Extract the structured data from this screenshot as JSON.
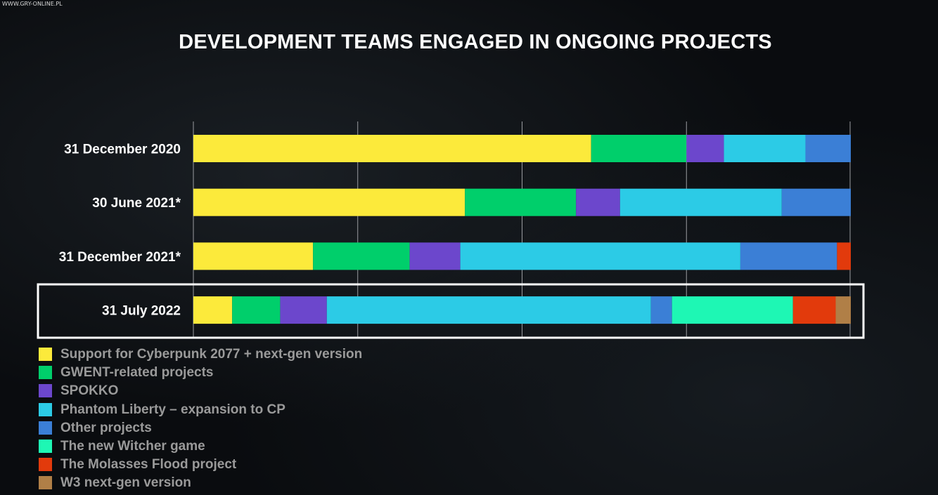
{
  "watermark": "WWW.GRY-ONLINE.PL",
  "chart_data": {
    "type": "bar",
    "orientation": "horizontal",
    "stacked": true,
    "normalized": true,
    "title": "DEVELOPMENT TEAMS ENGAGED IN ONGOING PROJECTS",
    "xlabel": "",
    "ylabel": "",
    "xlim": [
      0,
      100
    ],
    "grid": true,
    "legend_position": "bottom-left",
    "highlighted_category": "31 July 2022",
    "categories": [
      "31 December 2020",
      "30 June 2021*",
      "31 December 2021*",
      "31 July 2022"
    ],
    "series": [
      {
        "name": "Support for Cyberpunk 2077 + next-gen version",
        "color": "#fcea3b",
        "values": [
          60.5,
          41.3,
          18.2,
          5.9
        ]
      },
      {
        "name": "GWENT-related projects",
        "color": "#00cf6b",
        "values": [
          14.5,
          16.9,
          14.7,
          7.3
        ]
      },
      {
        "name": "SPOKKO",
        "color": "#6c47cc",
        "values": [
          5.7,
          6.7,
          7.7,
          7.1
        ]
      },
      {
        "name": "Phantom Liberty – expansion to CP",
        "color": "#2ccbe6",
        "values": [
          12.4,
          24.6,
          42.6,
          49.3
        ]
      },
      {
        "name": "Other projects",
        "color": "#3b7fd6",
        "values": [
          6.9,
          10.5,
          14.7,
          3.2
        ]
      },
      {
        "name": "The new Witcher game",
        "color": "#1ef7b4",
        "values": [
          0,
          0,
          0,
          18.4
        ]
      },
      {
        "name": "The Molasses Flood project",
        "color": "#e23a0c",
        "values": [
          0,
          0,
          2.1,
          6.5
        ]
      },
      {
        "name": "W3 next-gen version",
        "color": "#b07f47",
        "values": [
          0,
          0,
          0,
          2.3
        ]
      }
    ]
  }
}
